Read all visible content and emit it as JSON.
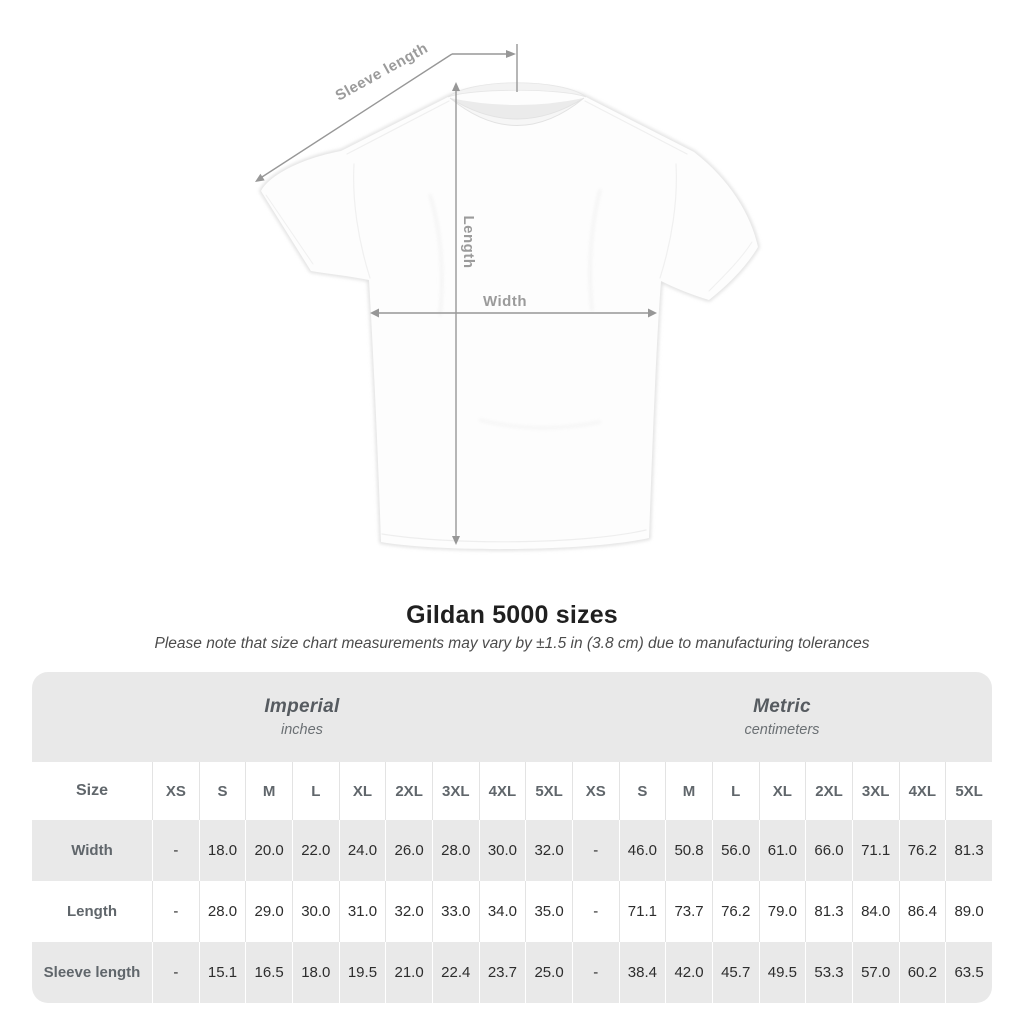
{
  "title": "Gildan 5000 sizes",
  "subtitle": "Please note that size chart measurements may vary by ±1.5 in (3.8 cm) due to manufacturing tolerances",
  "figure": {
    "labels": {
      "sleeve_length": "Sleeve length",
      "length": "Length",
      "width": "Width"
    }
  },
  "table": {
    "imperial": {
      "label": "Imperial",
      "unit": "inches"
    },
    "metric": {
      "label": "Metric",
      "unit": "centimeters"
    },
    "size_header": "Size",
    "sizes": [
      "XS",
      "S",
      "M",
      "L",
      "XL",
      "2XL",
      "3XL",
      "4XL",
      "5XL"
    ],
    "rows": [
      {
        "label": "Width",
        "imperial": [
          "-",
          "18.0",
          "20.0",
          "22.0",
          "24.0",
          "26.0",
          "28.0",
          "30.0",
          "32.0"
        ],
        "metric": [
          "-",
          "46.0",
          "50.8",
          "56.0",
          "61.0",
          "66.0",
          "71.1",
          "76.2",
          "81.3"
        ]
      },
      {
        "label": "Length",
        "imperial": [
          "-",
          "28.0",
          "29.0",
          "30.0",
          "31.0",
          "32.0",
          "33.0",
          "34.0",
          "35.0"
        ],
        "metric": [
          "-",
          "71.1",
          "73.7",
          "76.2",
          "79.0",
          "81.3",
          "84.0",
          "86.4",
          "89.0"
        ]
      },
      {
        "label": "Sleeve length",
        "imperial": [
          "-",
          "15.1",
          "16.5",
          "18.0",
          "19.5",
          "21.0",
          "22.4",
          "23.7",
          "25.0"
        ],
        "metric": [
          "-",
          "38.4",
          "42.0",
          "45.7",
          "49.5",
          "53.3",
          "57.0",
          "60.2",
          "63.5"
        ]
      }
    ]
  },
  "colors": {
    "table_shade": "#e9e9e9",
    "separator_light": "#e3e3e3",
    "label_ink": "#60666b",
    "value_ink": "#2d2d2d",
    "title_ink": "#202020",
    "dimension_gray": "#979797"
  },
  "chart_data": {
    "type": "table",
    "title": "Gildan 5000 sizes",
    "note": "Size chart measurements may vary by ±1.5 in (3.8 cm) due to manufacturing tolerances",
    "units": [
      "inches",
      "centimeters"
    ],
    "sizes": [
      "XS",
      "S",
      "M",
      "L",
      "XL",
      "2XL",
      "3XL",
      "4XL",
      "5XL"
    ],
    "measurements": {
      "Width": {
        "inches": [
          null,
          18.0,
          20.0,
          22.0,
          24.0,
          26.0,
          28.0,
          30.0,
          32.0
        ],
        "centimeters": [
          null,
          46.0,
          50.8,
          56.0,
          61.0,
          66.0,
          71.1,
          76.2,
          81.3
        ]
      },
      "Length": {
        "inches": [
          null,
          28.0,
          29.0,
          30.0,
          31.0,
          32.0,
          33.0,
          34.0,
          35.0
        ],
        "centimeters": [
          null,
          71.1,
          73.7,
          76.2,
          79.0,
          81.3,
          84.0,
          86.4,
          89.0
        ]
      },
      "Sleeve length": {
        "inches": [
          null,
          15.1,
          16.5,
          18.0,
          19.5,
          21.0,
          22.4,
          23.7,
          25.0
        ],
        "centimeters": [
          null,
          38.4,
          42.0,
          45.7,
          49.5,
          53.3,
          57.0,
          60.2,
          63.5
        ]
      }
    }
  }
}
